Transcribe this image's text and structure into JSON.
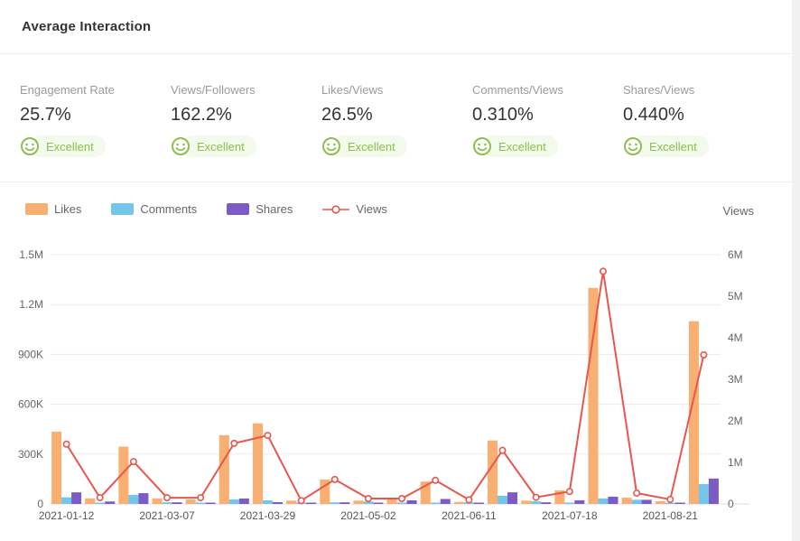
{
  "header": {
    "title": "Average Interaction"
  },
  "metrics": {
    "items": [
      {
        "label": "Engagement Rate",
        "value": "25.7%",
        "rating": "Excellent"
      },
      {
        "label": "Views/Followers",
        "value": "162.2%",
        "rating": "Excellent"
      },
      {
        "label": "Likes/Views",
        "value": "26.5%",
        "rating": "Excellent"
      },
      {
        "label": "Comments/Views",
        "value": "0.310%",
        "rating": "Excellent"
      },
      {
        "label": "Shares/Views",
        "value": "0.440%",
        "rating": "Excellent"
      }
    ]
  },
  "legend": {
    "items": [
      {
        "label": "Likes",
        "color": "#f9ae72",
        "type": "bar"
      },
      {
        "label": "Comments",
        "color": "#73c6e7",
        "type": "bar"
      },
      {
        "label": "Shares",
        "color": "#7c5bc4",
        "type": "bar"
      },
      {
        "label": "Views",
        "color": "#e8564e",
        "type": "line"
      }
    ]
  },
  "colors": {
    "rating_green": "#8cbf4f",
    "rating_green_bg": "#f3f9eb",
    "likes": "#f9ae72",
    "comments": "#73c6e7",
    "shares": "#7c5bc4",
    "views": "#e8564e"
  },
  "chart_data": {
    "type": "bar+line (dual axis)",
    "title": "",
    "categories": [
      "2021-01-12",
      "",
      "",
      "2021-03-07",
      "",
      "",
      "2021-03-29",
      "",
      "",
      "2021-05-02",
      "",
      "",
      "2021-06-11",
      "",
      "",
      "2021-07-18",
      "",
      "",
      "2021-08-21",
      ""
    ],
    "series": [
      {
        "name": "Likes",
        "type": "bar",
        "axis": "left",
        "color": "#f9ae72",
        "values": [
          435000,
          33000,
          345000,
          33000,
          27000,
          414000,
          485000,
          20000,
          147000,
          20000,
          35000,
          135000,
          12000,
          382000,
          20000,
          82000,
          1300000,
          38000,
          16000,
          1100000
        ]
      },
      {
        "name": "Comments",
        "type": "bar",
        "axis": "left",
        "color": "#73c6e7",
        "values": [
          40000,
          5000,
          55000,
          10000,
          8000,
          27000,
          22000,
          5000,
          10000,
          15000,
          8000,
          8000,
          10000,
          50000,
          16000,
          8000,
          33000,
          25000,
          5000,
          120000
        ]
      },
      {
        "name": "Shares",
        "type": "bar",
        "axis": "left",
        "color": "#7c5bc4",
        "values": [
          70000,
          15000,
          65000,
          10000,
          5000,
          33000,
          11000,
          5000,
          10000,
          8000,
          22000,
          30000,
          5000,
          70000,
          10000,
          22000,
          44000,
          25000,
          8000,
          153000
        ]
      },
      {
        "name": "Views",
        "type": "line",
        "axis": "right",
        "color": "#e8564e",
        "values": [
          1440000,
          150000,
          1020000,
          150000,
          150000,
          1460000,
          1650000,
          80000,
          590000,
          130000,
          130000,
          570000,
          100000,
          1290000,
          160000,
          300000,
          5600000,
          260000,
          110000,
          3590000
        ]
      }
    ],
    "left_axis": {
      "ticks": [
        "0",
        "300K",
        "600K",
        "900K",
        "1.2M",
        "1.5M"
      ],
      "max": 1500000
    },
    "right_axis": {
      "title": "Views",
      "ticks": [
        "0",
        "1M",
        "2M",
        "3M",
        "4M",
        "5M",
        "6M"
      ],
      "max": 6000000
    },
    "grid": true,
    "legend_position": "top-left"
  }
}
